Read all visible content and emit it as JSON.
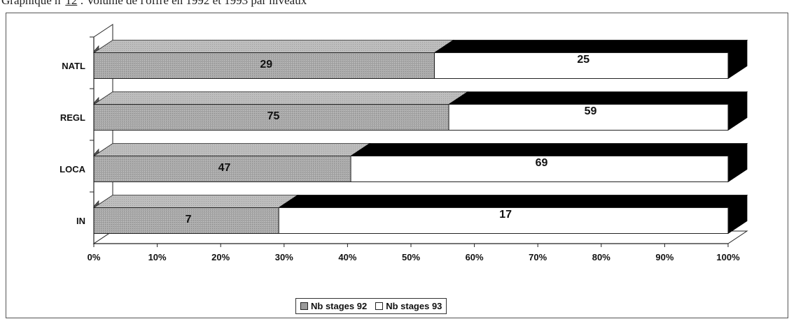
{
  "caption": {
    "prefix": "Graphique n°",
    "number": "12",
    "text": ": Volume de l'offre en 1992 et 1993 par niveaux"
  },
  "colors": {
    "series_92": "#a8a8a8",
    "series_93": "#ffffff",
    "depth": "#000000"
  },
  "chart_data": {
    "type": "bar",
    "orientation": "horizontal",
    "stacked": "percent",
    "three_d": true,
    "categories": [
      "IN",
      "LOCA",
      "REGL",
      "NATL"
    ],
    "series": [
      {
        "name": "Nb stages 92",
        "values": [
          7,
          47,
          75,
          29
        ]
      },
      {
        "name": "Nb stages 93",
        "values": [
          17,
          69,
          59,
          25
        ]
      }
    ],
    "x_ticks": [
      "0%",
      "10%",
      "20%",
      "30%",
      "40%",
      "50%",
      "60%",
      "70%",
      "80%",
      "90%",
      "100%"
    ],
    "xlim": [
      0,
      100
    ],
    "grid": false,
    "legend_position": "bottom"
  }
}
